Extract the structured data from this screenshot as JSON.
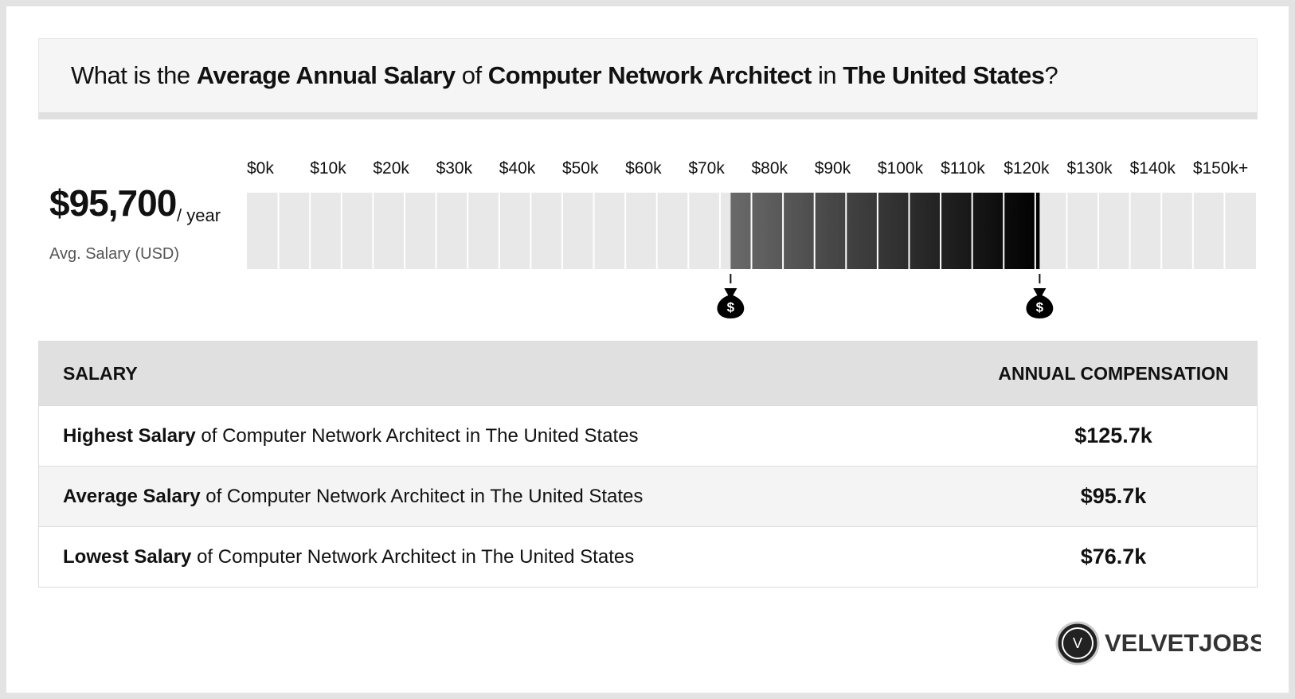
{
  "title": {
    "segments": [
      {
        "text": "What is the ",
        "bold": false
      },
      {
        "text": "Average Annual Salary",
        "bold": true
      },
      {
        "text": " of ",
        "bold": false
      },
      {
        "text": "Computer Network Architect",
        "bold": true
      },
      {
        "text": " in ",
        "bold": false
      },
      {
        "text": "The United States",
        "bold": true
      },
      {
        "text": "?",
        "bold": false
      }
    ]
  },
  "summary": {
    "amount": "$95,700",
    "unit": "/ year",
    "caption": "Avg. Salary (USD)"
  },
  "scale": {
    "xlim": [
      0,
      160
    ],
    "xticks": [
      {
        "value": 0,
        "label": "$0k"
      },
      {
        "value": 10,
        "label": "$10k"
      },
      {
        "value": 20,
        "label": "$20k"
      },
      {
        "value": 30,
        "label": "$30k"
      },
      {
        "value": 40,
        "label": "$40k"
      },
      {
        "value": 50,
        "label": "$50k"
      },
      {
        "value": 60,
        "label": "$60k"
      },
      {
        "value": 70,
        "label": "$70k"
      },
      {
        "value": 80,
        "label": "$80k"
      },
      {
        "value": 90,
        "label": "$90k"
      },
      {
        "value": 100,
        "label": "$100k"
      },
      {
        "value": 110,
        "label": "$110k"
      },
      {
        "value": 120,
        "label": "$120k"
      },
      {
        "value": 130,
        "label": "$130k"
      },
      {
        "value": 140,
        "label": "$140k"
      },
      {
        "value": 150,
        "label": "$150k+"
      }
    ],
    "low": 76.7,
    "high": 125.7,
    "marker_symbol": "$"
  },
  "table": {
    "header": [
      "SALARY",
      "ANNUAL COMPENSATION"
    ],
    "rows": [
      {
        "label_bold": "Highest Salary",
        "label_rest": " of Computer Network Architect in The United States",
        "value": "$125.7k"
      },
      {
        "label_bold": "Average Salary",
        "label_rest": " of Computer Network Architect in The United States",
        "value": "$95.7k"
      },
      {
        "label_bold": "Lowest Salary",
        "label_rest": " of Computer Network Architect in The United States",
        "value": "$76.7k"
      }
    ]
  },
  "logo": {
    "initial": "V",
    "name": "VELVETJOBS"
  }
}
